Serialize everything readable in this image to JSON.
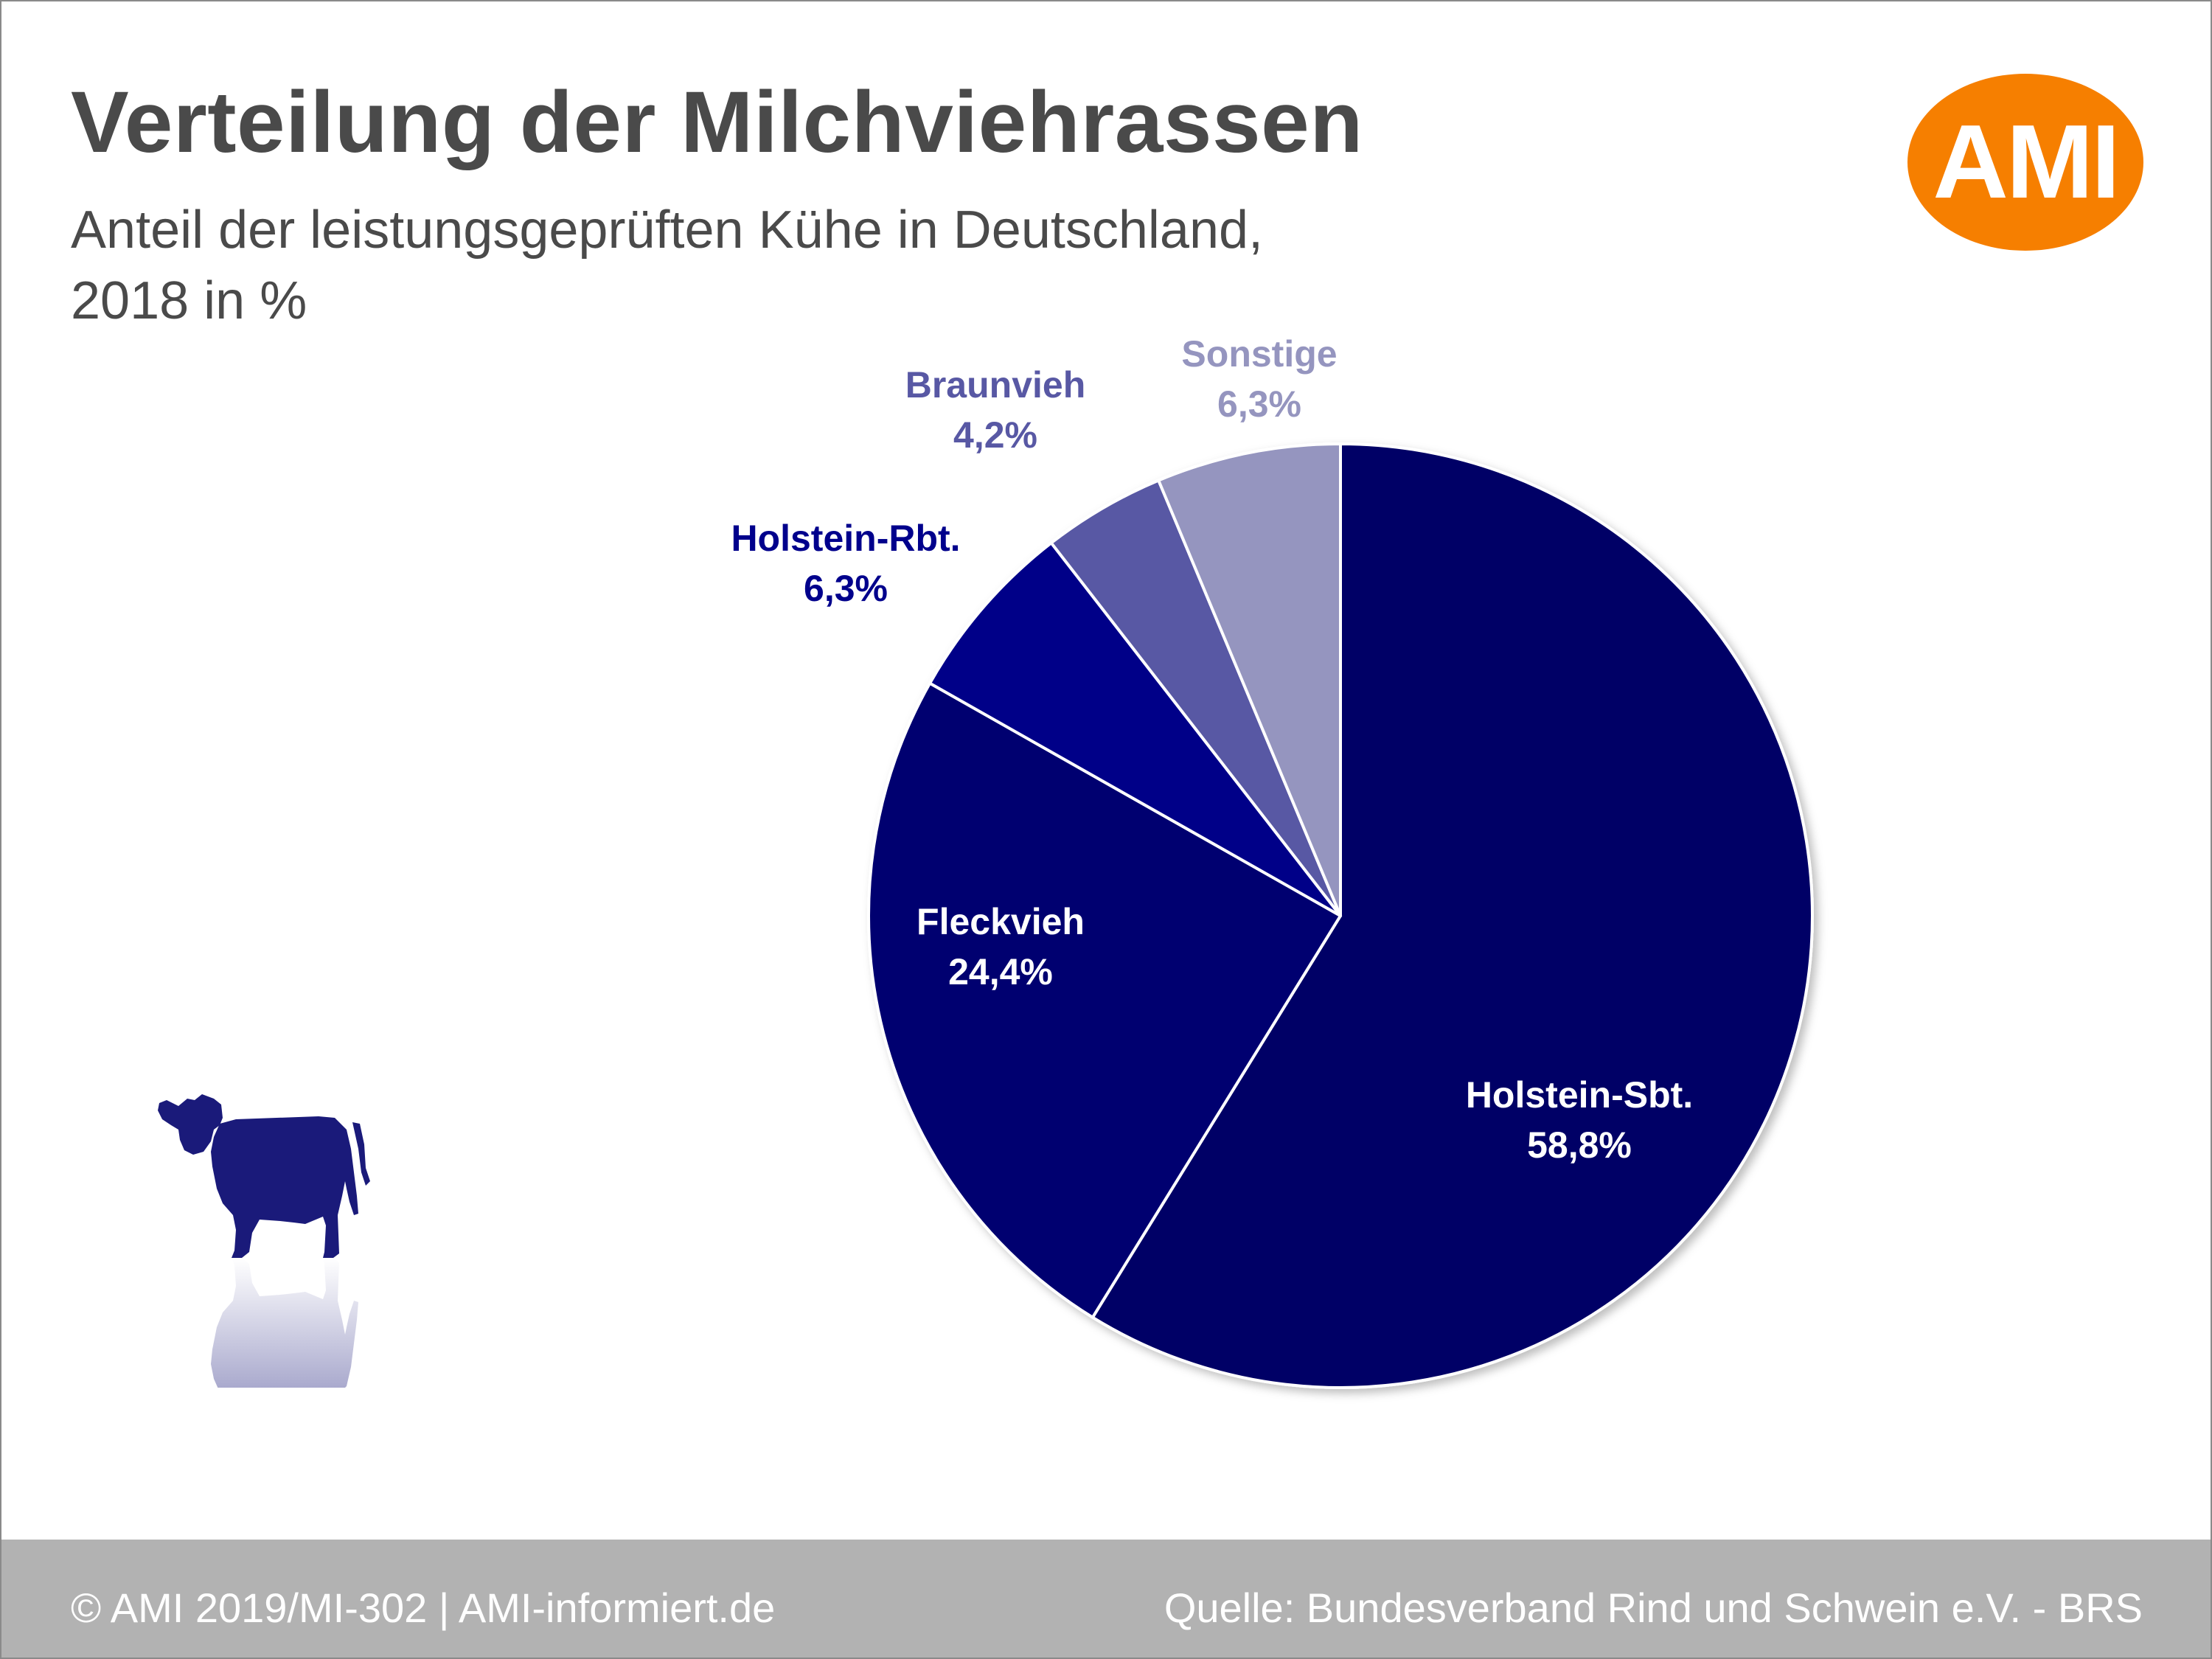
{
  "header": {
    "title": "Verteilung der Milchviehrassen",
    "subtitle_line1": "Anteil der leistungsgeprüften Kühe in Deutschland,",
    "subtitle_line2": "2018 in %"
  },
  "logo": {
    "text": "AMI",
    "color": "#f67f00"
  },
  "footer": {
    "left": "© AMI 2019/MI-302 | AMI-informiert.de",
    "right": "Quelle: Bundesverband Rind und Schwein e.V. - BRS",
    "background": "#b2b2b2"
  },
  "decoration": {
    "icon": "cow-icon",
    "color": "#1a1a7a"
  },
  "chart_data": {
    "type": "pie",
    "slices": [
      {
        "name": "Holstein-Sbt.",
        "value": 58.8,
        "label": "58,8%",
        "color": "#000066",
        "label_color": "#ffffff"
      },
      {
        "name": "Fleckvieh",
        "value": 24.4,
        "label": "24,4%",
        "color": "#000070",
        "label_color": "#ffffff"
      },
      {
        "name": "Holstein-Rbt.",
        "value": 6.3,
        "label": "6,3%",
        "color": "#000088",
        "label_color": "#00008c"
      },
      {
        "name": "Braunvieh",
        "value": 4.2,
        "label": "4,2%",
        "color": "#5858a4",
        "label_color": "#5858a4"
      },
      {
        "name": "Sonstige",
        "value": 6.3,
        "label": "6,3%",
        "color": "#9595bf",
        "label_color": "#9595bf"
      }
    ]
  }
}
